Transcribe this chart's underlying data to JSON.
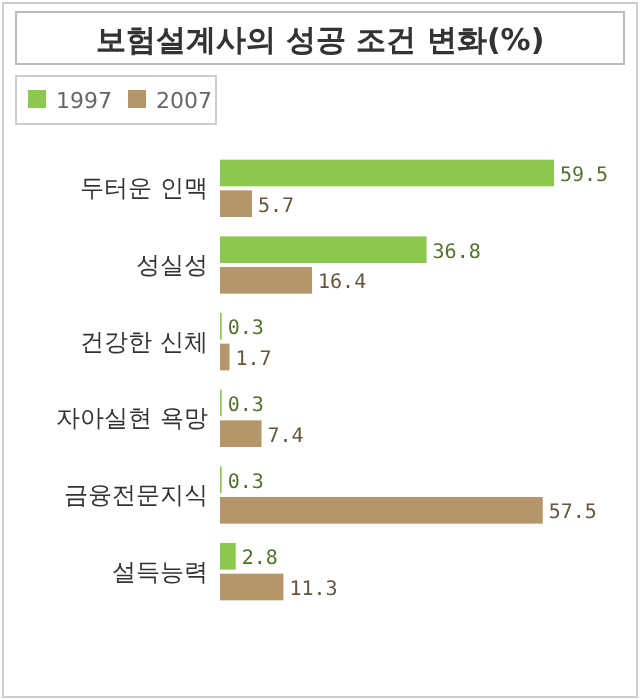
{
  "chart_data": {
    "type": "bar",
    "orientation": "horizontal",
    "title": "보험설계사의 성공 조건 변화(%)",
    "categories": [
      "두터운 인맥",
      "성실성",
      "건강한 신체",
      "자아실현 욕망",
      "금융전문지식",
      "설득능력"
    ],
    "series": [
      {
        "name": "1997",
        "color": "#8cc850",
        "values": [
          59.5,
          36.8,
          0.3,
          0.3,
          0.3,
          2.8
        ]
      },
      {
        "name": "2007",
        "color": "#b4966a",
        "values": [
          5.7,
          16.4,
          1.7,
          7.4,
          57.5,
          11.3
        ]
      }
    ],
    "data_labels": true,
    "legend": "top left"
  }
}
